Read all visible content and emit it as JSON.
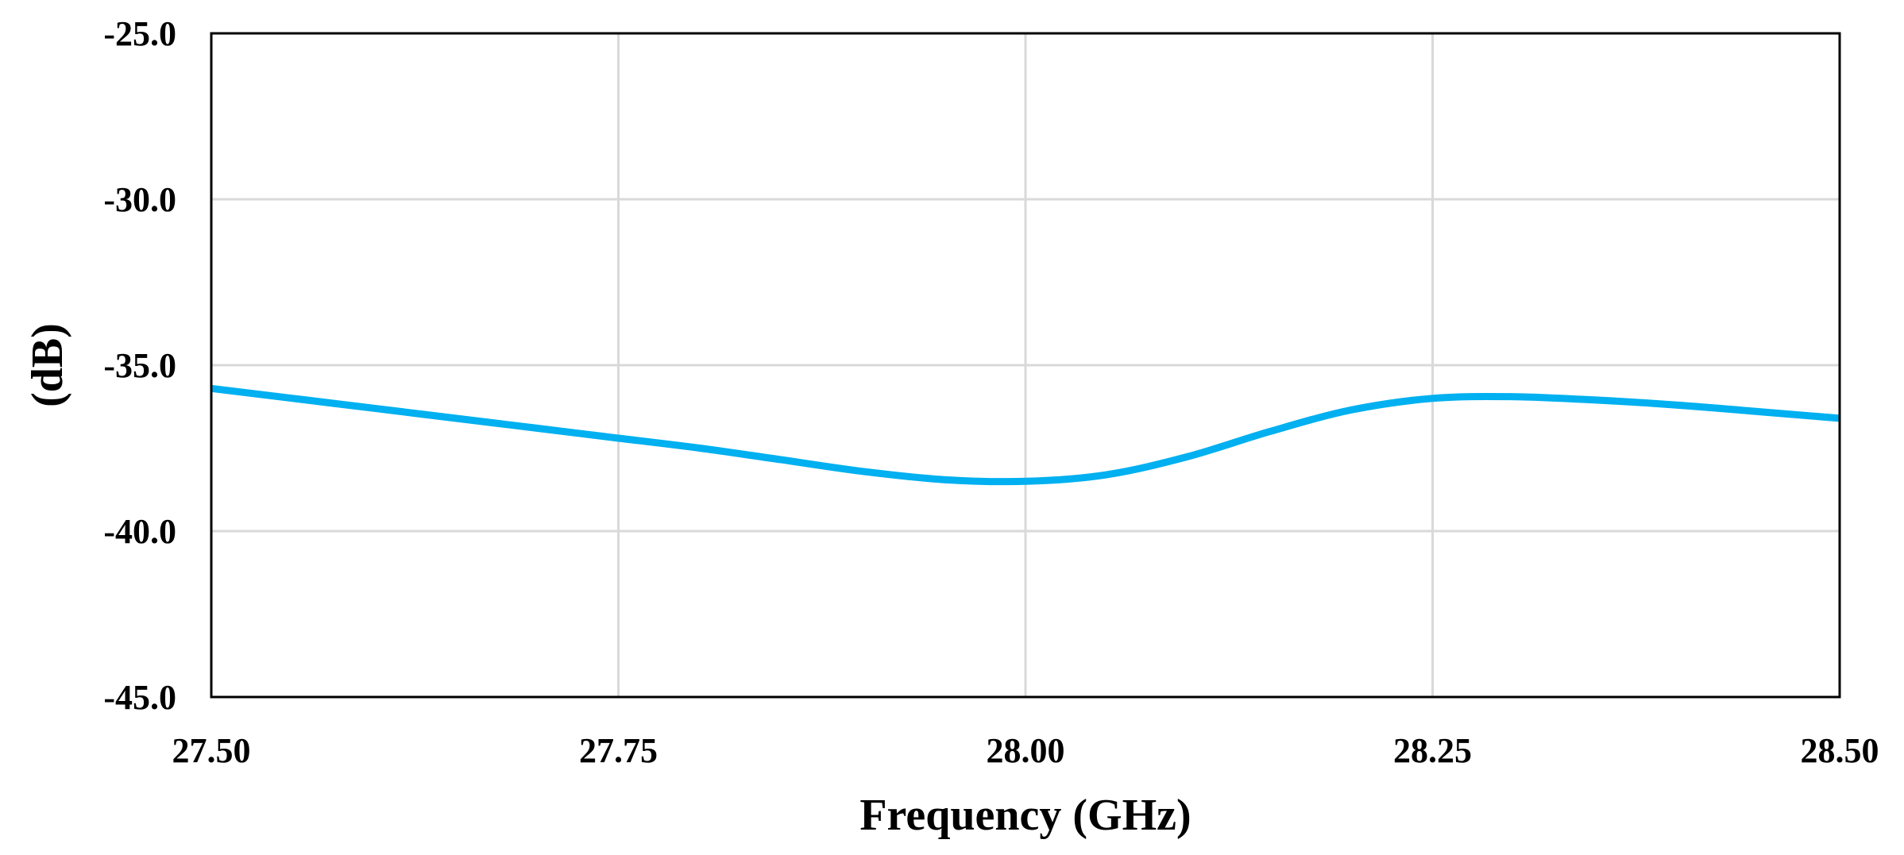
{
  "chart_data": {
    "type": "line",
    "title": "",
    "xlabel": "Frequency (GHz)",
    "ylabel": "(dB)",
    "xlim": [
      27.5,
      28.5
    ],
    "ylim": [
      -45.0,
      -25.0
    ],
    "x_ticks": [
      "27.50",
      "27.75",
      "28.00",
      "28.25",
      "28.50"
    ],
    "y_ticks": [
      "-25.0",
      "-30.0",
      "-35.0",
      "-40.0",
      "-45.0"
    ],
    "grid": true,
    "legend": "none",
    "series": [
      {
        "color": "#00b0f0",
        "x": [
          27.5,
          27.55,
          27.6,
          27.65,
          27.7,
          27.75,
          27.8,
          27.85,
          27.9,
          27.95,
          28.0,
          28.05,
          28.1,
          28.15,
          28.2,
          28.25,
          28.3,
          28.35,
          28.4,
          28.45,
          28.5
        ],
        "y": [
          -35.7,
          -36.0,
          -36.3,
          -36.6,
          -36.9,
          -37.2,
          -37.5,
          -37.85,
          -38.2,
          -38.45,
          -38.5,
          -38.3,
          -37.75,
          -37.0,
          -36.35,
          -36.0,
          -35.95,
          -36.05,
          -36.2,
          -36.4,
          -36.6
        ]
      }
    ]
  }
}
